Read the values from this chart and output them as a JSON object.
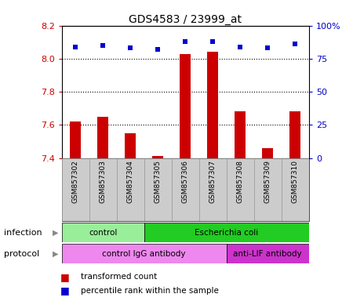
{
  "title": "GDS4583 / 23999_at",
  "samples": [
    "GSM857302",
    "GSM857303",
    "GSM857304",
    "GSM857305",
    "GSM857306",
    "GSM857307",
    "GSM857308",
    "GSM857309",
    "GSM857310"
  ],
  "transformed_counts": [
    7.62,
    7.65,
    7.55,
    7.41,
    8.03,
    8.04,
    7.68,
    7.46,
    7.68
  ],
  "percentile_ranks": [
    84,
    85,
    83,
    82,
    88,
    88,
    84,
    83,
    86
  ],
  "ylim_left": [
    7.4,
    8.2
  ],
  "ylim_right": [
    0,
    100
  ],
  "yticks_left": [
    7.4,
    7.6,
    7.8,
    8.0,
    8.2
  ],
  "yticks_right": [
    0,
    25,
    50,
    75,
    100
  ],
  "ytick_labels_right": [
    "0",
    "25",
    "50",
    "75",
    "100%"
  ],
  "bar_color": "#cc0000",
  "dot_color": "#0000cc",
  "dotted_lines": [
    7.6,
    7.8,
    8.0
  ],
  "infection_groups": [
    {
      "label": "control",
      "start": 0,
      "end": 3,
      "color": "#99ee99"
    },
    {
      "label": "Escherichia coli",
      "start": 3,
      "end": 9,
      "color": "#22cc22"
    }
  ],
  "protocol_groups": [
    {
      "label": "control IgG antibody",
      "start": 0,
      "end": 6,
      "color": "#ee88ee"
    },
    {
      "label": "anti-LIF antibody",
      "start": 6,
      "end": 9,
      "color": "#cc33cc"
    }
  ],
  "infection_label": "infection",
  "protocol_label": "protocol",
  "legend_red_label": "transformed count",
  "legend_blue_label": "percentile rank within the sample",
  "sample_bg_color": "#cccccc",
  "sample_border_color": "#999999"
}
